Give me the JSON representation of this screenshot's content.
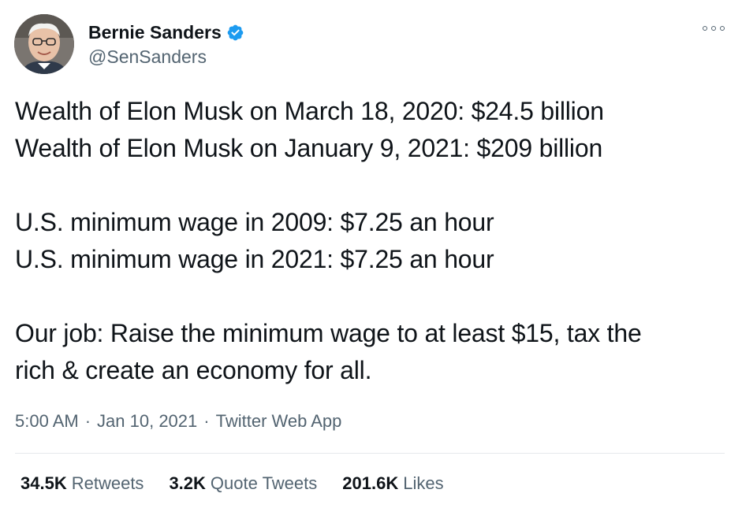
{
  "author": {
    "display_name": "Bernie Sanders",
    "handle": "@SenSanders",
    "verified": true,
    "avatar_icon": "profile-photo"
  },
  "tweet": {
    "lines": [
      "Wealth of Elon Musk on March 18, 2020: $24.5 billion",
      "Wealth of Elon Musk on January 9, 2021: $209 billion",
      "U.S. minimum wage in 2009: $7.25 an hour",
      "U.S. minimum wage in 2021: $7.25 an hour",
      "Our job: Raise the minimum wage to at least $15, tax the",
      "rich & create an economy for all."
    ]
  },
  "meta": {
    "time": "5:00 AM",
    "separator": "·",
    "date": "Jan 10, 2021",
    "source": "Twitter Web App"
  },
  "stats": {
    "retweets_count": "34.5K",
    "retweets_label": "Retweets",
    "quotes_count": "3.2K",
    "quotes_label": "Quote Tweets",
    "likes_count": "201.6K",
    "likes_label": "Likes"
  },
  "colors": {
    "text": "#0f1419",
    "secondary": "#536471",
    "verified_blue": "#1d9bf0",
    "divider": "#e5e9ec"
  },
  "icons": {
    "more": "more-options-icon",
    "verified": "verified-badge-icon"
  }
}
